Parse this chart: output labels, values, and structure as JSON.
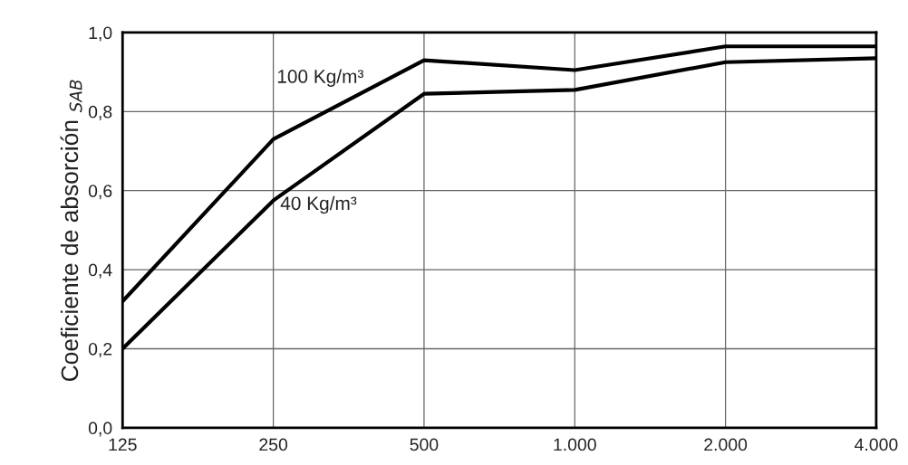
{
  "chart_data": {
    "type": "line",
    "ylabel": "Coeficiente de absorción $_{SAB}$",
    "categories": [
      "125",
      "250",
      "500",
      "1.000",
      "2.000",
      "4.000"
    ],
    "series": [
      {
        "name": "100 Kg/m³",
        "color": "#000000",
        "values": [
          0.32,
          0.73,
          0.93,
          0.905,
          0.965,
          0.965
        ]
      },
      {
        "name": "40 Kg/m³",
        "color": "#000000",
        "values": [
          0.2,
          0.575,
          0.845,
          0.855,
          0.925,
          0.935
        ]
      }
    ],
    "ylim": [
      0,
      1
    ],
    "yticks": [
      {
        "value": 0,
        "label": "0,0"
      },
      {
        "value": 0.2,
        "label": "0,2"
      },
      {
        "value": 0.4,
        "label": "0,4"
      },
      {
        "value": 0.6,
        "label": "0,6"
      },
      {
        "value": 0.8,
        "label": "0,8"
      },
      {
        "value": 1,
        "label": "1,0"
      }
    ],
    "grid": true,
    "legend": false,
    "marker": "none",
    "line_style": "solid"
  }
}
